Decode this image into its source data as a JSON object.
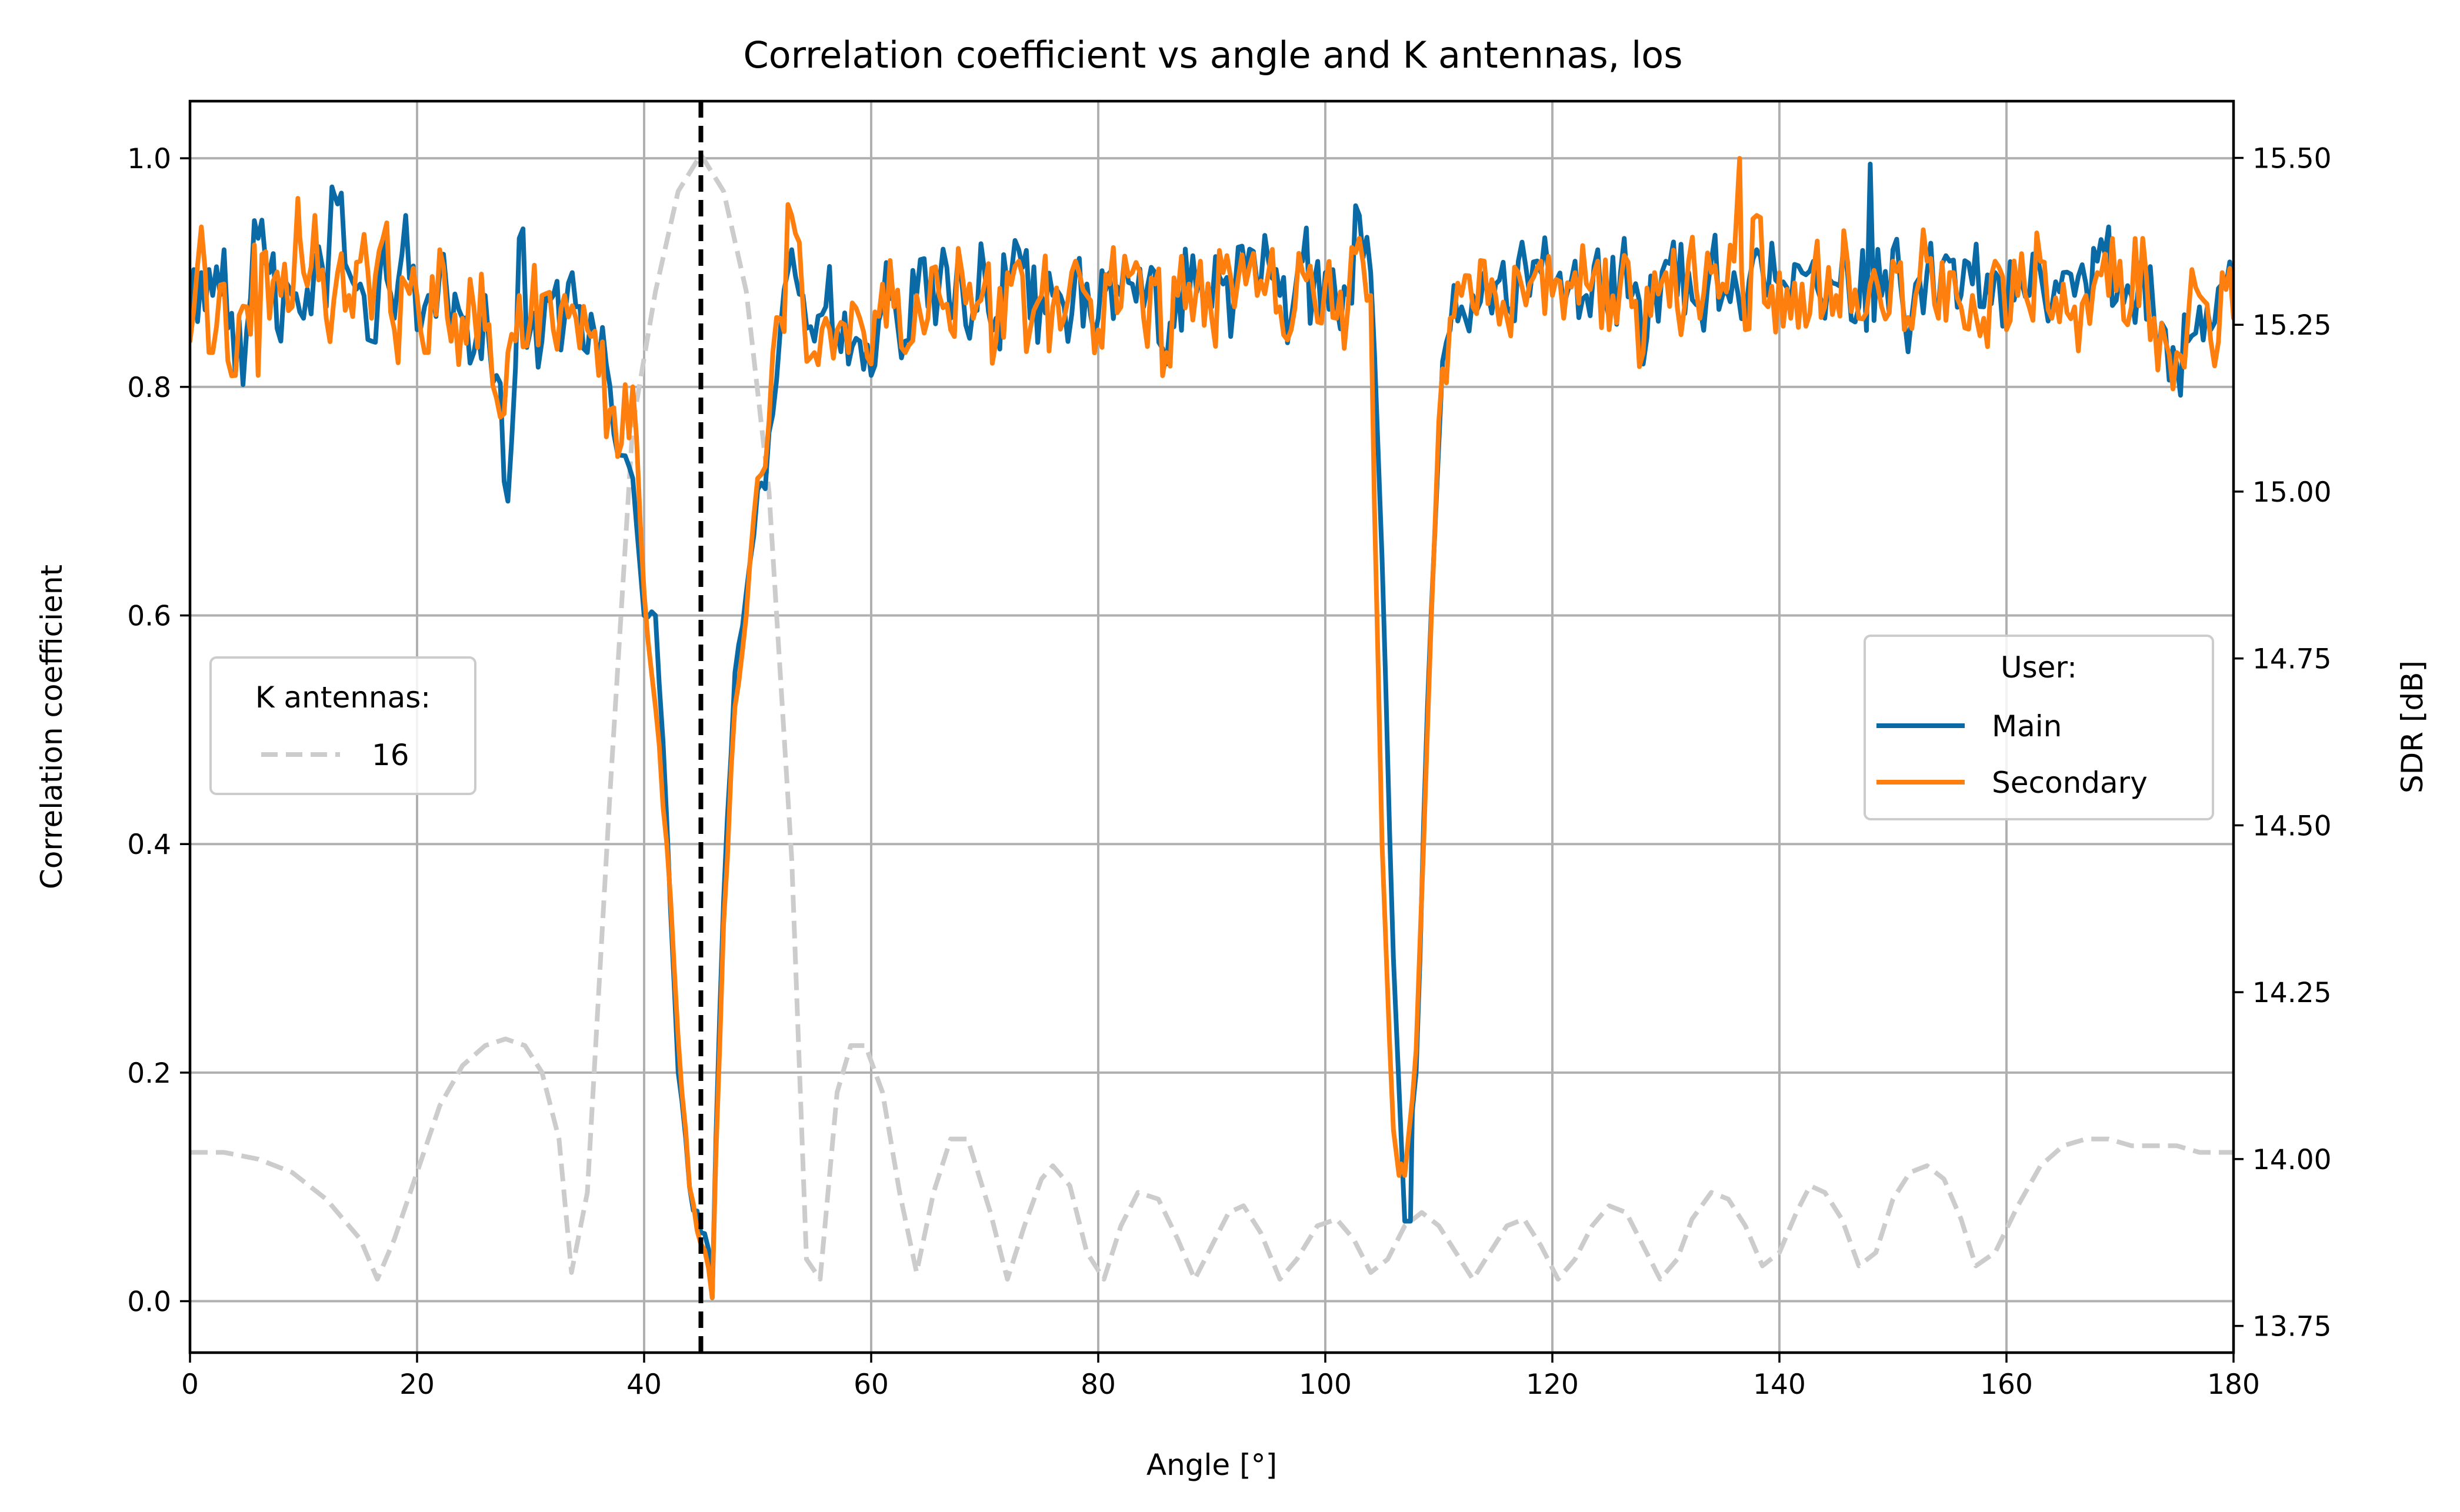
{
  "chart_data": {
    "type": "line",
    "title": "Correlation coefficient vs angle and K antennas, los",
    "xlabel": "Angle [°]",
    "ylabel": "Correlation coefficient",
    "y2label": "SDR [dB]",
    "xlim": [
      0,
      180
    ],
    "ylim": [
      -0.045,
      1.05
    ],
    "y2lim": [
      13.71,
      15.585
    ],
    "xticks": [
      0,
      20,
      40,
      60,
      80,
      100,
      120,
      140,
      160,
      180
    ],
    "yticks": [
      0.0,
      0.2,
      0.4,
      0.6,
      0.8,
      1.0
    ],
    "y2ticks": [
      13.75,
      14.0,
      14.25,
      14.5,
      14.75,
      15.0,
      15.25,
      15.5
    ],
    "grid": true,
    "vline": {
      "x": 45,
      "style": "dashed",
      "color": "#000000"
    },
    "legend_user": {
      "title": "User:",
      "placement": "center-right",
      "entries": [
        "Main",
        "Secondary"
      ]
    },
    "legend_k": {
      "title": "K antennas:",
      "placement": "center-left",
      "entries": [
        "16"
      ]
    },
    "series": [
      {
        "name": "Main",
        "axis": "left",
        "color": "#0a6aa5",
        "x": [
          0,
          1,
          2,
          3,
          4,
          5,
          6,
          7,
          8,
          9,
          10,
          11,
          12,
          13,
          14,
          15,
          16,
          17,
          18,
          19,
          20,
          21,
          22,
          23,
          24,
          25,
          26,
          27,
          28,
          29,
          30,
          31,
          32,
          33,
          34,
          35,
          36,
          37,
          38,
          39,
          40,
          41,
          42,
          43,
          44,
          45,
          46,
          47,
          48,
          49,
          50,
          51,
          52,
          53,
          54,
          55,
          56,
          57,
          58,
          59,
          60,
          61,
          62,
          63,
          64,
          65,
          66,
          67,
          68,
          69,
          70,
          71,
          72,
          73,
          74,
          75,
          76,
          77,
          78,
          79,
          80,
          81,
          82,
          83,
          84,
          85,
          86,
          87,
          88,
          89,
          90,
          91,
          92,
          93,
          94,
          95,
          96,
          97,
          98,
          99,
          100,
          101,
          102,
          103,
          104,
          105,
          106,
          107,
          108,
          109,
          110,
          111,
          112,
          113,
          114,
          115,
          116,
          117,
          118,
          119,
          120,
          121,
          122,
          123,
          124,
          125,
          126,
          127,
          128,
          129,
          130,
          131,
          132,
          133,
          134,
          135,
          136,
          137,
          138,
          139,
          140,
          141,
          142,
          143,
          144,
          145,
          146,
          147,
          148,
          149,
          150,
          151,
          152,
          153,
          154,
          155,
          156,
          157,
          158,
          159,
          160,
          161,
          162,
          163,
          164,
          165,
          166,
          167,
          168,
          169,
          170,
          171,
          172,
          173,
          174,
          175,
          176,
          177,
          178,
          179,
          180
        ],
        "values": [
          0.86,
          0.9,
          0.88,
          0.92,
          0.81,
          0.85,
          0.93,
          0.9,
          0.84,
          0.88,
          0.86,
          0.91,
          0.87,
          0.96,
          0.9,
          0.89,
          0.84,
          0.93,
          0.86,
          0.95,
          0.85,
          0.88,
          0.9,
          0.84,
          0.86,
          0.83,
          0.88,
          0.81,
          0.7,
          0.93,
          0.85,
          0.84,
          0.88,
          0.86,
          0.87,
          0.83,
          0.82,
          0.8,
          0.74,
          0.72,
          0.6,
          0.6,
          0.42,
          0.2,
          0.1,
          0.06,
          0.04,
          0.35,
          0.55,
          0.62,
          0.71,
          0.76,
          0.85,
          0.92,
          0.88,
          0.84,
          0.87,
          0.85,
          0.82,
          0.84,
          0.81,
          0.87,
          0.88,
          0.84,
          0.88,
          0.87,
          0.89,
          0.86,
          0.89,
          0.87,
          0.9,
          0.86,
          0.89,
          0.92,
          0.86,
          0.88,
          0.88,
          0.87,
          0.9,
          0.89,
          0.86,
          0.9,
          0.88,
          0.89,
          0.87,
          0.9,
          0.82,
          0.89,
          0.88,
          0.9,
          0.87,
          0.89,
          0.88,
          0.9,
          0.89,
          0.91,
          0.88,
          0.86,
          0.91,
          0.89,
          0.9,
          0.87,
          0.88,
          0.95,
          0.9,
          0.65,
          0.3,
          0.07,
          0.2,
          0.52,
          0.75,
          0.85,
          0.87,
          0.88,
          0.9,
          0.89,
          0.87,
          0.91,
          0.88,
          0.9,
          0.89,
          0.87,
          0.91,
          0.88,
          0.92,
          0.86,
          0.9,
          0.88,
          0.82,
          0.89,
          0.91,
          0.88,
          0.9,
          0.87,
          0.91,
          0.88,
          0.9,
          0.86,
          0.92,
          0.88,
          0.89,
          0.87,
          0.9,
          0.91,
          0.86,
          0.89,
          0.9,
          0.87,
          0.9,
          0.88,
          0.92,
          0.86,
          0.89,
          0.9,
          0.87,
          0.91,
          0.88,
          0.89,
          0.87,
          0.9,
          0.86,
          0.89,
          0.88,
          0.9,
          0.87,
          0.9,
          0.88,
          0.89,
          0.91,
          0.87,
          0.9,
          0.88,
          0.92,
          0.86,
          0.85,
          0.82,
          0.84,
          0.87,
          0.85,
          0.89,
          0.88
        ],
        "extremes": [
          [
            12.5,
            0.975
          ],
          [
            28,
            0.7
          ],
          [
            46,
            0.003
          ],
          [
            107.5,
            0.07
          ],
          [
            148,
            0.995
          ],
          [
            169,
            0.94
          ]
        ]
      },
      {
        "name": "Secondary",
        "axis": "left",
        "color": "#ff7f0e",
        "x": [
          0,
          1,
          2,
          3,
          4,
          5,
          6,
          7,
          8,
          9,
          10,
          11,
          12,
          13,
          14,
          15,
          16,
          17,
          18,
          19,
          20,
          21,
          22,
          23,
          24,
          25,
          26,
          27,
          28,
          29,
          30,
          31,
          32,
          33,
          34,
          35,
          36,
          37,
          38,
          39,
          40,
          41,
          42,
          43,
          44,
          45,
          46,
          47,
          48,
          49,
          50,
          51,
          52,
          53,
          54,
          55,
          56,
          57,
          58,
          59,
          60,
          61,
          62,
          63,
          64,
          65,
          66,
          67,
          68,
          69,
          70,
          71,
          72,
          73,
          74,
          75,
          76,
          77,
          78,
          79,
          80,
          81,
          82,
          83,
          84,
          85,
          86,
          87,
          88,
          89,
          90,
          91,
          92,
          93,
          94,
          95,
          96,
          97,
          98,
          99,
          100,
          101,
          102,
          103,
          104,
          105,
          106,
          107,
          108,
          109,
          110,
          111,
          112,
          113,
          114,
          115,
          116,
          117,
          118,
          119,
          120,
          121,
          122,
          123,
          124,
          125,
          126,
          127,
          128,
          129,
          130,
          131,
          132,
          133,
          134,
          135,
          136,
          137,
          138,
          139,
          140,
          141,
          142,
          143,
          144,
          145,
          146,
          147,
          148,
          149,
          150,
          151,
          152,
          153,
          154,
          155,
          156,
          157,
          158,
          159,
          160,
          161,
          162,
          163,
          164,
          165,
          166,
          167,
          168,
          169,
          170,
          171,
          172,
          173,
          174,
          175,
          176,
          177,
          178,
          179,
          180
        ],
        "values": [
          0.84,
          0.94,
          0.83,
          0.89,
          0.81,
          0.87,
          0.92,
          0.86,
          0.88,
          0.87,
          0.9,
          0.95,
          0.86,
          0.9,
          0.88,
          0.91,
          0.86,
          0.93,
          0.85,
          0.89,
          0.88,
          0.83,
          0.92,
          0.84,
          0.86,
          0.87,
          0.85,
          0.79,
          0.83,
          0.88,
          0.86,
          0.88,
          0.85,
          0.88,
          0.86,
          0.85,
          0.81,
          0.78,
          0.75,
          0.8,
          0.62,
          0.52,
          0.4,
          0.23,
          0.1,
          0.05,
          0.02,
          0.33,
          0.52,
          0.6,
          0.72,
          0.77,
          0.86,
          0.95,
          0.87,
          0.83,
          0.86,
          0.85,
          0.83,
          0.86,
          0.82,
          0.89,
          0.87,
          0.83,
          0.88,
          0.86,
          0.88,
          0.85,
          0.9,
          0.86,
          0.89,
          0.84,
          0.9,
          0.91,
          0.85,
          0.88,
          0.87,
          0.86,
          0.91,
          0.88,
          0.85,
          0.89,
          0.87,
          0.9,
          0.86,
          0.89,
          0.83,
          0.88,
          0.89,
          0.91,
          0.86,
          0.9,
          0.87,
          0.89,
          0.88,
          0.9,
          0.87,
          0.85,
          0.9,
          0.88,
          0.89,
          0.86,
          0.87,
          0.93,
          0.88,
          0.4,
          0.15,
          0.11,
          0.22,
          0.5,
          0.77,
          0.86,
          0.88,
          0.87,
          0.91,
          0.88,
          0.86,
          0.9,
          0.89,
          0.91,
          0.88,
          0.86,
          0.9,
          0.89,
          0.91,
          0.85,
          0.89,
          0.87,
          0.83,
          0.9,
          0.9,
          0.87,
          0.91,
          0.86,
          0.9,
          0.89,
          0.91,
          0.85,
          0.95,
          0.87,
          0.9,
          0.86,
          0.89,
          0.9,
          0.87,
          0.88,
          0.91,
          0.86,
          0.89,
          0.87,
          0.91,
          0.85,
          0.88,
          0.91,
          0.86,
          0.9,
          0.87,
          0.88,
          0.86,
          0.91,
          0.85,
          0.88,
          0.87,
          0.91,
          0.86,
          0.89,
          0.87,
          0.88,
          0.9,
          0.88,
          0.91,
          0.87,
          0.93,
          0.86,
          0.84,
          0.83,
          0.86,
          0.88,
          0.84,
          0.9,
          0.86
        ],
        "extremes": [
          [
            6,
            0.81
          ],
          [
            9.5,
            0.965
          ],
          [
            46,
            0.003
          ],
          [
            106.5,
            0.11
          ],
          [
            136.5,
            1.0
          ]
        ]
      },
      {
        "name": "16",
        "axis": "right",
        "color": "#cccccc",
        "dashed": true,
        "x": [
          0,
          3,
          6,
          9,
          12,
          15,
          16.5,
          18,
          20,
          22,
          24,
          26,
          27.8,
          29.5,
          31,
          32.5,
          33.6,
          35,
          37,
          39,
          41,
          43,
          45,
          47,
          49,
          51,
          53,
          54.3,
          55.5,
          57,
          58.2,
          59.5,
          61,
          62.5,
          64,
          65.5,
          67,
          68.5,
          70.5,
          72,
          73.5,
          75,
          76,
          77.5,
          79,
          80.5,
          82,
          83.5,
          85.3,
          87,
          88.5,
          90,
          91.5,
          92.8,
          94.3,
          96,
          97.5,
          99.3,
          101,
          102.5,
          104,
          105.5,
          107,
          108.5,
          110,
          111.5,
          113,
          114.5,
          116,
          117.5,
          119,
          120.5,
          122,
          123.5,
          125,
          126.5,
          128,
          129.5,
          131,
          132.3,
          134,
          135.5,
          137,
          138.5,
          140,
          141.5,
          142.7,
          144,
          145.5,
          147,
          148.5,
          150,
          151.5,
          153,
          154.5,
          156,
          157.3,
          159,
          161,
          163,
          165,
          167,
          169,
          171,
          173,
          175,
          177,
          180
        ],
        "values": [
          14.01,
          14.01,
          14.0,
          13.98,
          13.94,
          13.88,
          13.82,
          13.88,
          13.98,
          14.08,
          14.14,
          14.17,
          14.18,
          14.17,
          14.13,
          14.03,
          13.83,
          13.95,
          14.55,
          15.1,
          15.3,
          15.45,
          15.5,
          15.45,
          15.3,
          15.0,
          14.45,
          13.85,
          13.82,
          14.1,
          14.17,
          14.17,
          14.1,
          13.95,
          13.83,
          13.95,
          14.03,
          14.03,
          13.92,
          13.82,
          13.9,
          13.97,
          13.99,
          13.96,
          13.86,
          13.82,
          13.9,
          13.95,
          13.94,
          13.88,
          13.82,
          13.87,
          13.92,
          13.93,
          13.89,
          13.82,
          13.85,
          13.9,
          13.91,
          13.88,
          13.83,
          13.85,
          13.9,
          13.92,
          13.9,
          13.86,
          13.82,
          13.86,
          13.9,
          13.91,
          13.87,
          13.82,
          13.85,
          13.9,
          13.93,
          13.92,
          13.87,
          13.82,
          13.85,
          13.91,
          13.95,
          13.94,
          13.9,
          13.84,
          13.86,
          13.92,
          13.96,
          13.95,
          13.91,
          13.84,
          13.86,
          13.94,
          13.98,
          13.99,
          13.97,
          13.91,
          13.84,
          13.86,
          13.93,
          13.99,
          14.02,
          14.03,
          14.03,
          14.02,
          14.02,
          14.02,
          14.01,
          14.01
        ],
        "extremes": [
          [
            45,
            15.505
          ]
        ]
      }
    ]
  }
}
